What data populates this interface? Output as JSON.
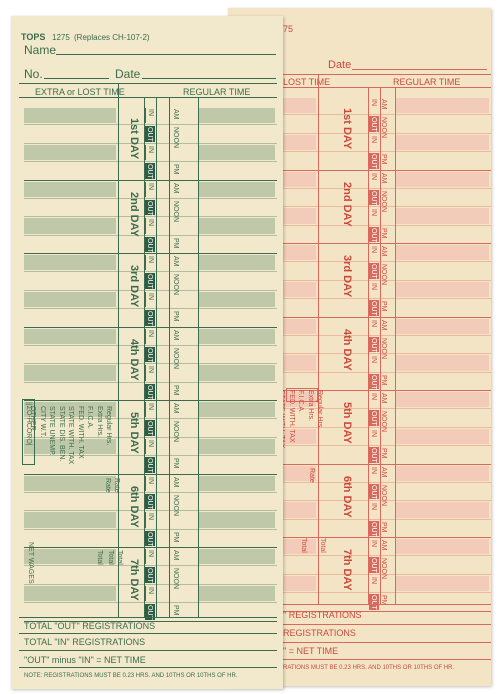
{
  "header": {
    "brand": "TOPS",
    "form_number": "1275",
    "replaces": "(Replaces CH-107-2)",
    "name_label": "Name",
    "no_label": "No.",
    "date_label": "Date"
  },
  "columns": {
    "extra": "EXTRA or LOST TIME",
    "regular": "REGULAR TIME",
    "back_extra": "LOST TIME"
  },
  "days": [
    "1st DAY",
    "2nd DAY",
    "3rd DAY",
    "4th DAY",
    "5th DAY",
    "6th DAY",
    "7th DAY"
  ],
  "slot_labels": {
    "in": "IN",
    "out": "OUT",
    "am": "AM",
    "noon": "NOON",
    "pm": "PM"
  },
  "payroll": {
    "income": "INCOME",
    "income_box": "||ΣO-ΗCORO|",
    "items": [
      "Regular Hrs.",
      "Extra Hrs.",
      "F.I.C.A.",
      "FED. WITH. TAX",
      "STATE WITH. TAX",
      "STATE DIS. BEN.",
      "STATE UNEMP.",
      "CITY W.T.",
      "OTHER"
    ],
    "rate": "Rate",
    "total": "Total",
    "net_wages": "NET WAGES"
  },
  "footer": {
    "total_out": "TOTAL \"OUT\" REGISTRATIONS",
    "total_in": "TOTAL \"IN\" REGISTRATIONS",
    "net_time": "\"OUT\" minus \"IN\" = NET TIME",
    "note": "NOTE: REGISTRATIONS MUST BE 0.23 HRS. AND 10THS OR 10THS OF HR."
  },
  "back": {
    "form_number": "275",
    "date_label": "Date",
    "registrations": "\" REGISTRATIONS",
    "in_registrations": "REGISTRATIONS",
    "net_time": "\" = NET TIME",
    "note": "RATIONS MUST BE 0.23 HRS. AND 10THS OR 10THS OF HR.",
    "payroll_items": [
      "Regular Hrs.",
      "Extra Hrs.",
      "F.I.C.A.",
      "FED. WITH. TAX",
      "STATE WITH. TAX"
    ],
    "rate": "Rate",
    "total": "Total"
  },
  "colors": {
    "front_ink": "#3c6b4d",
    "back_ink": "#c94a3a",
    "front_card": "#f2e9cc",
    "back_card": "#f4e4c6"
  }
}
